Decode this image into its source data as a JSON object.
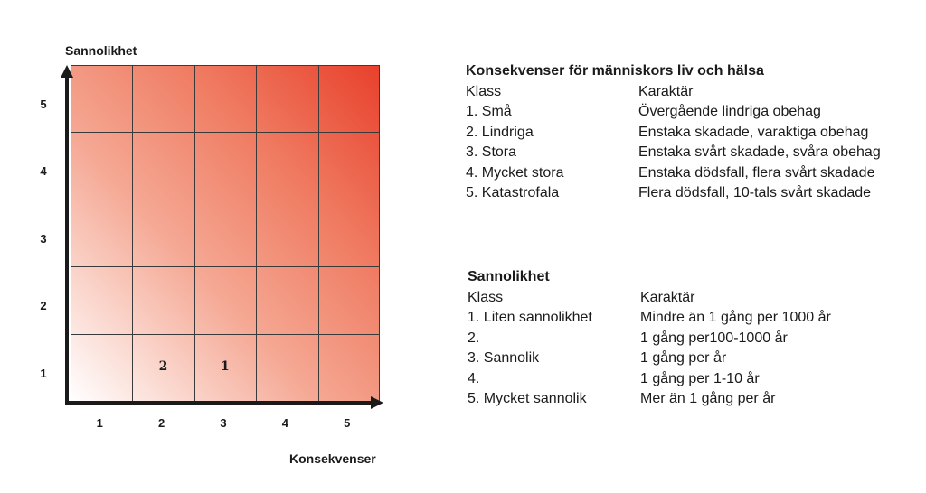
{
  "matrix": {
    "y_axis_title": "Sannolikhet",
    "x_axis_title": "Konsekvenser",
    "y_ticks": [
      "5",
      "4",
      "3",
      "2",
      "1"
    ],
    "x_ticks": [
      "1",
      "2",
      "3",
      "4",
      "5"
    ],
    "markers": [
      {
        "label": "2",
        "konsekvens": 2,
        "sannolikhet": 1
      },
      {
        "label": "1",
        "konsekvens": 3,
        "sannolikhet": 1
      }
    ],
    "colors": {
      "low": "#ffffff",
      "high": "#e8402c",
      "grid": "#3a3a3a",
      "axis": "#1a1a1a"
    }
  },
  "konsekvens_legend": {
    "title": "Konsekvenser för människors liv och hälsa",
    "col1_header": "Klass",
    "col2_header": "Karaktär",
    "rows": [
      {
        "klass": "1.  Små",
        "karaktar": "Övergående lindriga obehag"
      },
      {
        "klass": "2.  Lindriga",
        "karaktar": "Enstaka skadade, varaktiga obehag"
      },
      {
        "klass": "3.  Stora",
        "karaktar": "Enstaka svårt skadade, svåra obehag"
      },
      {
        "klass": "4.  Mycket stora",
        "karaktar": "Enstaka dödsfall, flera svårt skadade"
      },
      {
        "klass": "5.  Katastrofala",
        "karaktar": "Flera dödsfall, 10-tals svårt skadade"
      }
    ]
  },
  "sannolikhet_legend": {
    "title": "Sannolikhet",
    "col1_header": "Klass",
    "col2_header": "Karaktär",
    "rows": [
      {
        "klass": "1.  Liten sannolikhet",
        "karaktar": "Mindre än 1 gång per 1000 år"
      },
      {
        "klass": "2.",
        "karaktar": "1 gång per100-1000 år"
      },
      {
        "klass": "3.  Sannolik",
        "karaktar": "1 gång per år"
      },
      {
        "klass": "4.",
        "karaktar": "1 gång per 1-10 år"
      },
      {
        "klass": "5.  Mycket sannolik",
        "karaktar": "Mer än 1 gång per år"
      }
    ]
  }
}
